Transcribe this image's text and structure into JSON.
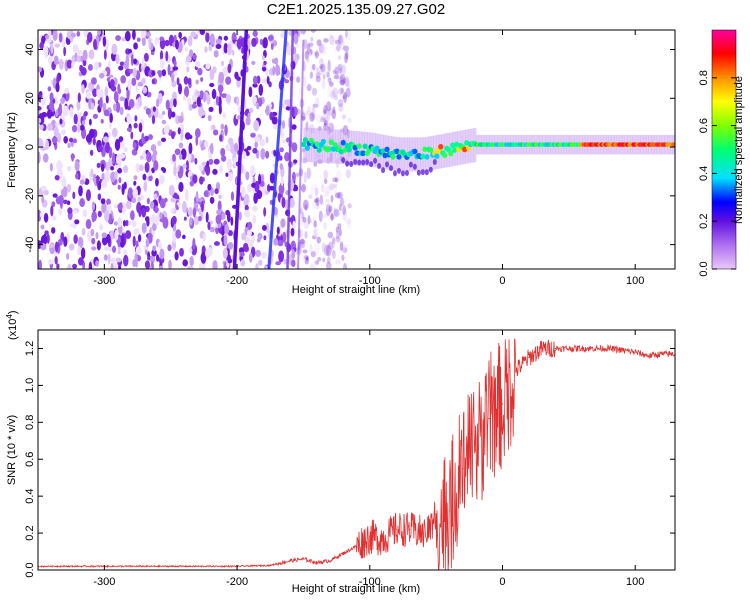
{
  "figure_title": "C2E1.2025.135.09.27.G02",
  "chart_data": [
    {
      "type": "heatmap",
      "xlabel": "Height of straight line (km)",
      "ylabel": "Frequency (Hz)",
      "xlim": [
        -350,
        130
      ],
      "ylim": [
        -50,
        48
      ],
      "x_ticks": [
        -300,
        -200,
        -100,
        0,
        100
      ],
      "y_ticks": [
        -40,
        -20,
        0,
        20,
        40
      ],
      "grid": false,
      "colorbar": {
        "label": "Normalized spectral amplitude",
        "range": [
          0,
          1
        ],
        "ticks": [
          "0.0",
          "0.2",
          "0.4",
          "0.6",
          "0.8"
        ],
        "colors": [
          "#e8c8f8",
          "#b070f0",
          "#6010e0",
          "#0000ff",
          "#00e0ff",
          "#00ff70",
          "#80ff00",
          "#ffff00",
          "#ff9000",
          "#ff0000",
          "#ff00a0"
        ]
      },
      "features": {
        "noise_region_x": [
          -350,
          -140
        ],
        "signal_band": [
          {
            "x": -150,
            "y": 1
          },
          {
            "x": -120,
            "y": 0
          },
          {
            "x": -100,
            "y": -1
          },
          {
            "x": -80,
            "y": -3
          },
          {
            "x": -60,
            "y": -3
          },
          {
            "x": -40,
            "y": -1
          },
          {
            "x": -20,
            "y": 1
          },
          {
            "x": 0,
            "y": 1
          },
          {
            "x": 50,
            "y": 1
          },
          {
            "x": 100,
            "y": 1
          },
          {
            "x": 130,
            "y": 1
          }
        ]
      }
    },
    {
      "type": "line",
      "xlabel": "Height of straight line (km)",
      "ylabel": "SNR (10 * v/v)",
      "y_scale_note": "(x10",
      "y_scale_exp": "4",
      "xlim": [
        -350,
        130
      ],
      "ylim": [
        0,
        1.3
      ],
      "x_ticks": [
        -300,
        -200,
        -100,
        0,
        100
      ],
      "y_ticks": [
        "0.0",
        "0.2",
        "0.4",
        "0.6",
        "0.8",
        "1.0",
        "1.2"
      ],
      "grid": false,
      "series": [
        {
          "color": "#e03030",
          "x": [
            -350,
            -300,
            -250,
            -200,
            -175,
            -160,
            -150,
            -140,
            -130,
            -120,
            -110,
            -100,
            -90,
            -80,
            -70,
            -60,
            -50,
            -40,
            -30,
            -20,
            -10,
            0,
            10,
            20,
            30,
            40,
            60,
            80,
            100,
            110,
            120,
            130
          ],
          "y": [
            0.02,
            0.02,
            0.02,
            0.02,
            0.025,
            0.05,
            0.06,
            0.04,
            0.05,
            0.09,
            0.13,
            0.18,
            0.17,
            0.22,
            0.22,
            0.2,
            0.25,
            0.32,
            0.55,
            0.65,
            0.82,
            0.9,
            1.08,
            1.15,
            1.2,
            1.2,
            1.2,
            1.2,
            1.18,
            1.16,
            1.17,
            1.17
          ]
        }
      ]
    }
  ]
}
